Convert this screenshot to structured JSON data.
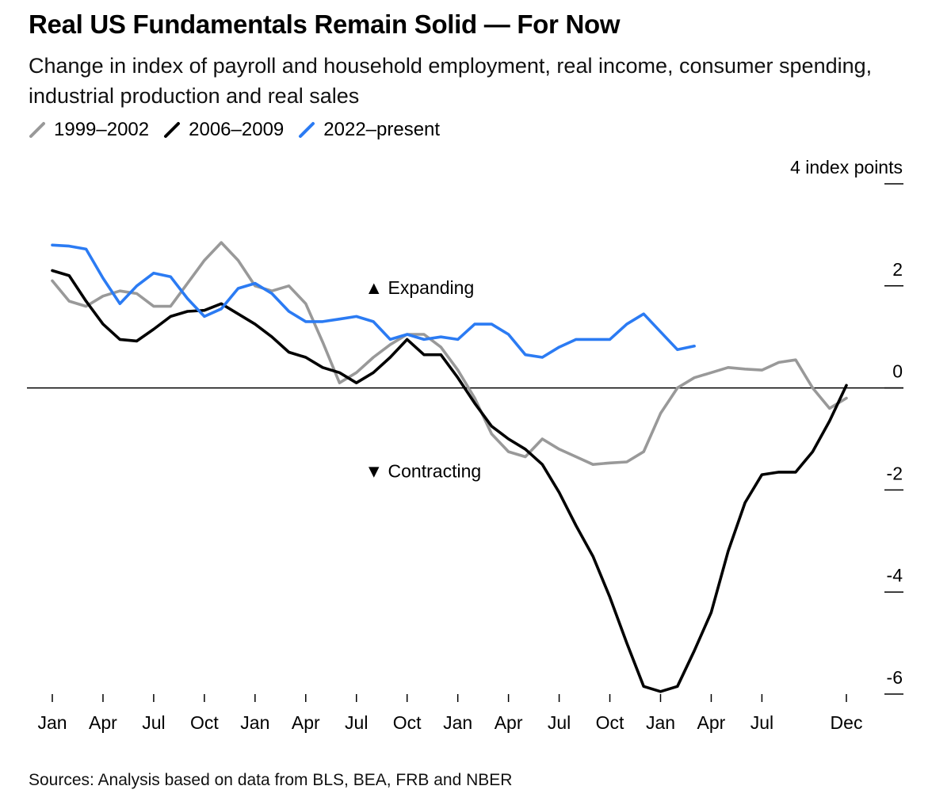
{
  "title": "Real US Fundamentals Remain Solid — For Now",
  "subtitle": "Change in index of payroll and household employment, real income, consumer spending, industrial production and real sales",
  "source": "Sources: Analysis based on data from BLS, BEA, FRB and NBER",
  "chart_data": {
    "type": "line",
    "title": "Real US Fundamentals Remain Solid — For Now",
    "subtitle": "Change in index of payroll and household employment, real income, consumer spending, industrial production and real sales",
    "ylabel": "index points",
    "y_unit_label": "4 index points",
    "ylim": [
      -6,
      4
    ],
    "y_ticks": [
      4,
      2,
      0,
      -2,
      -4,
      -6
    ],
    "y_tick_labels": [
      "4 index points",
      "2",
      "0",
      "-2",
      "-4",
      "-6"
    ],
    "x_ticks_month_index": [
      0,
      3,
      6,
      9,
      12,
      15,
      18,
      21,
      24,
      27,
      30,
      33,
      36,
      39,
      42,
      47
    ],
    "x_tick_labels": [
      "Jan",
      "Apr",
      "Jul",
      "Oct",
      "Jan",
      "Apr",
      "Jul",
      "Oct",
      "Jan",
      "Apr",
      "Jul",
      "Oct",
      "Jan",
      "Apr",
      "Jul",
      "Dec"
    ],
    "xlim_months": [
      0,
      47
    ],
    "grid": false,
    "legend_position": "top-left",
    "annotations": [
      {
        "text": "▲ Expanding",
        "x": 20,
        "y": 2
      },
      {
        "text": "▼ Contracting",
        "x": 20,
        "y": -1.6
      }
    ],
    "series": [
      {
        "name": "1999–2002",
        "color": "#999999",
        "values": [
          2.1,
          1.7,
          1.6,
          1.8,
          1.9,
          1.85,
          1.6,
          1.6,
          2.05,
          2.5,
          2.85,
          2.5,
          2.0,
          1.9,
          2.0,
          1.65,
          0.9,
          0.1,
          0.3,
          0.6,
          0.85,
          1.05,
          1.05,
          0.8,
          0.35,
          -0.2,
          -0.9,
          -1.25,
          -1.35,
          -1.0,
          -1.2,
          -1.35,
          -1.5,
          -1.47,
          -1.45,
          -1.25,
          -0.5,
          0.0,
          0.2,
          0.3,
          0.4,
          0.37,
          0.35,
          0.5,
          0.55,
          0.0,
          -0.4,
          -0.2
        ]
      },
      {
        "name": "2006–2009",
        "color": "#000000",
        "values": [
          2.3,
          2.2,
          1.7,
          1.25,
          0.95,
          0.92,
          1.15,
          1.4,
          1.5,
          1.52,
          1.65,
          1.45,
          1.25,
          1.0,
          0.7,
          0.6,
          0.4,
          0.3,
          0.1,
          0.3,
          0.6,
          0.95,
          0.65,
          0.65,
          0.2,
          -0.3,
          -0.75,
          -1.0,
          -1.2,
          -1.5,
          -2.05,
          -2.7,
          -3.3,
          -4.1,
          -5.0,
          -5.85,
          -5.95,
          -5.85,
          -5.15,
          -4.4,
          -3.2,
          -2.25,
          -1.7,
          -1.65,
          -1.65,
          -1.25,
          -0.65,
          0.05
        ]
      },
      {
        "name": "2022–present",
        "color": "#2b7bf3",
        "values": [
          2.8,
          2.78,
          2.72,
          2.15,
          1.65,
          2.0,
          2.25,
          2.18,
          1.75,
          1.4,
          1.55,
          1.95,
          2.05,
          1.85,
          1.5,
          1.3,
          1.3,
          1.35,
          1.4,
          1.3,
          0.95,
          1.05,
          0.95,
          1.0,
          0.95,
          1.25,
          1.25,
          1.05,
          0.65,
          0.6,
          0.8,
          0.95,
          0.95,
          0.95,
          1.25,
          1.45,
          1.1,
          0.75,
          0.82
        ]
      }
    ]
  }
}
